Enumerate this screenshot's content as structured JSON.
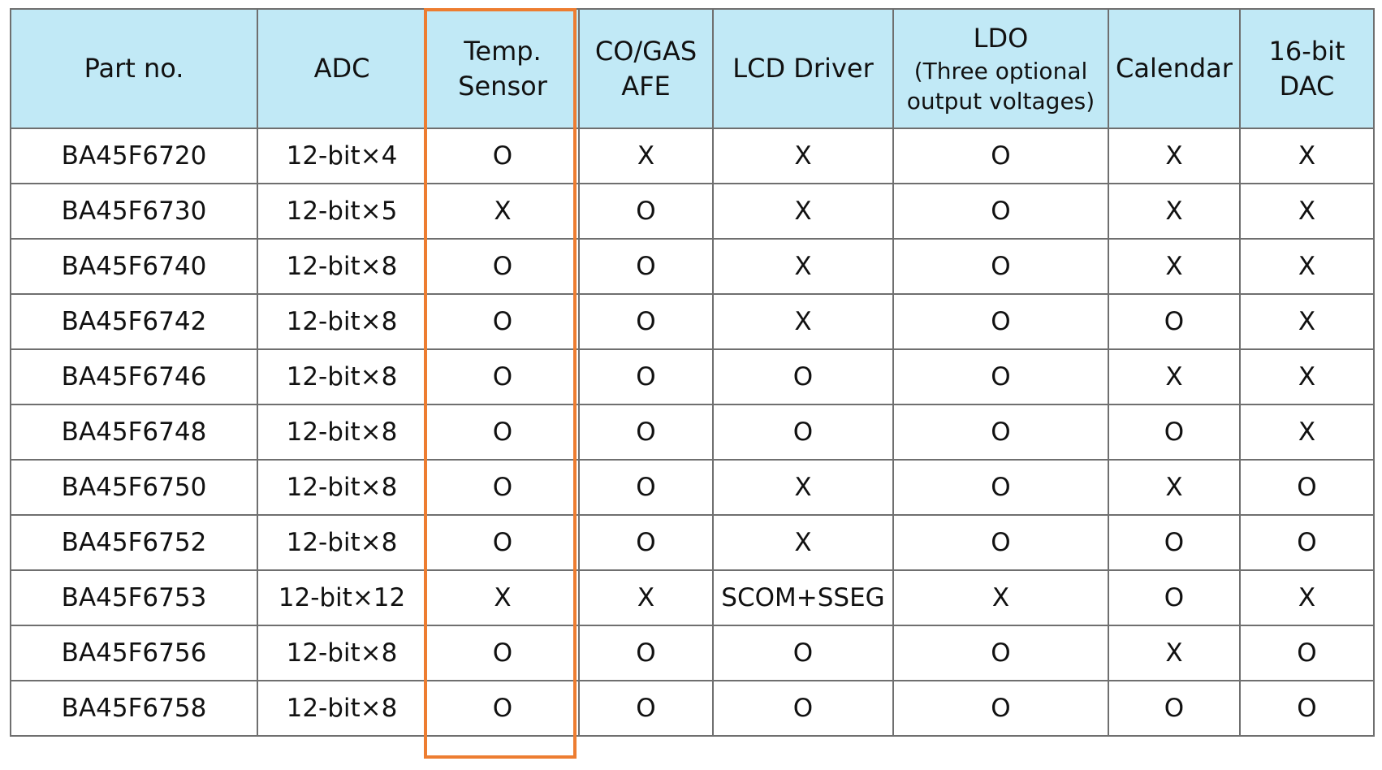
{
  "table": {
    "headers": [
      {
        "lines": [
          "Part no."
        ],
        "sub": []
      },
      {
        "lines": [
          "ADC"
        ],
        "sub": []
      },
      {
        "lines": [
          "Temp.",
          "Sensor"
        ],
        "sub": []
      },
      {
        "lines": [
          "CO/GAS",
          "AFE"
        ],
        "sub": []
      },
      {
        "lines": [
          "LCD Driver"
        ],
        "sub": []
      },
      {
        "lines": [
          "LDO"
        ],
        "sub": [
          "(Three optional",
          "output voltages)"
        ]
      },
      {
        "lines": [
          "Calendar"
        ],
        "sub": []
      },
      {
        "lines": [
          "16-bit",
          "DAC"
        ],
        "sub": []
      }
    ],
    "rows": [
      [
        "BA45F6720",
        "12-bit×4",
        "O",
        "X",
        "X",
        "O",
        "X",
        "X"
      ],
      [
        "BA45F6730",
        "12-bit×5",
        "X",
        "O",
        "X",
        "O",
        "X",
        "X"
      ],
      [
        "BA45F6740",
        "12-bit×8",
        "O",
        "O",
        "X",
        "O",
        "X",
        "X"
      ],
      [
        "BA45F6742",
        "12-bit×8",
        "O",
        "O",
        "X",
        "O",
        "O",
        "X"
      ],
      [
        "BA45F6746",
        "12-bit×8",
        "O",
        "O",
        "O",
        "O",
        "X",
        "X"
      ],
      [
        "BA45F6748",
        "12-bit×8",
        "O",
        "O",
        "O",
        "O",
        "O",
        "X"
      ],
      [
        "BA45F6750",
        "12-bit×8",
        "O",
        "O",
        "X",
        "O",
        "X",
        "O"
      ],
      [
        "BA45F6752",
        "12-bit×8",
        "O",
        "O",
        "X",
        "O",
        "O",
        "O"
      ],
      [
        "BA45F6753",
        "12-bit×12",
        "X",
        "X",
        "SCOM+SSEG",
        "X",
        "O",
        "X"
      ],
      [
        "BA45F6756",
        "12-bit×8",
        "O",
        "O",
        "O",
        "O",
        "X",
        "O"
      ],
      [
        "BA45F6758",
        "12-bit×8",
        "O",
        "O",
        "O",
        "O",
        "O",
        "O"
      ]
    ]
  },
  "colors": {
    "header_bg": "#c1e9f6",
    "grid": "#6f6f6f",
    "highlight": "#ed7d31"
  },
  "highlighted_column": "Temp. Sensor"
}
